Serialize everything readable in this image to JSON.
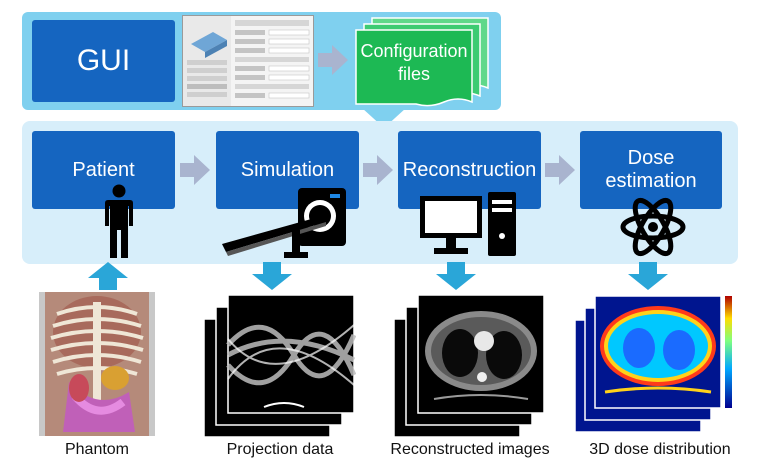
{
  "gui": {
    "label": "GUI"
  },
  "config_files": {
    "label": "Configuration files"
  },
  "steps": [
    {
      "label": "Patient"
    },
    {
      "label": "Simulation"
    },
    {
      "label": "Reconstruction"
    },
    {
      "label": "Dose estimation"
    }
  ],
  "outputs": [
    {
      "label": "Phantom"
    },
    {
      "label": "Projection data"
    },
    {
      "label": "Reconstructed images"
    },
    {
      "label": "3D dose distribution"
    }
  ],
  "colors": {
    "box_blue": "#1565c0",
    "panel_light": "#d7eefa",
    "panel_top": "#7fd0ef",
    "arrow_gray": "#a9b4cf",
    "arrow_cyan": "#2aa6d8",
    "config_green": "#1db954"
  },
  "icons": [
    "person-icon",
    "ct-scanner-icon",
    "computer-icon",
    "atom-icon"
  ]
}
